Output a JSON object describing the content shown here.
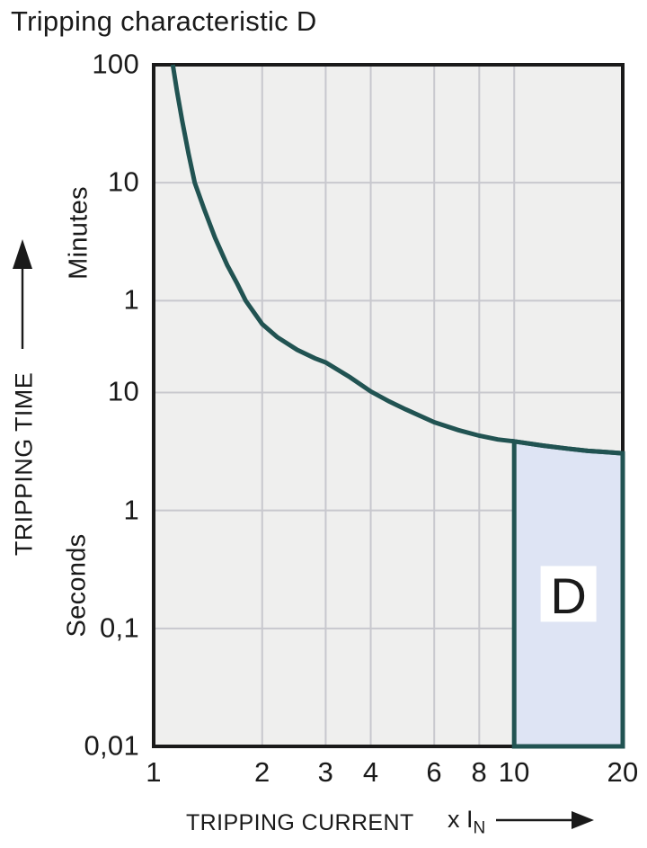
{
  "title": "Tripping characteristic D",
  "colors": {
    "text": "#1a1a1a",
    "curve": "#215352",
    "region_fill": "#dee4f4",
    "plot_bg": "#efefee",
    "grid": "#c8c8ce",
    "border": "#1a1a1a",
    "label_box_bg": "#ffffff",
    "page_bg": "#ffffff"
  },
  "chart_data": {
    "type": "line",
    "title": "Tripping characteristic D",
    "grid": true,
    "x_axis": {
      "label": "TRIPPING CURRENT",
      "multiplier_prefix": "x I",
      "multiplier_sub": "N",
      "scale": "log",
      "min": 1,
      "max": 20,
      "ticks": [
        1,
        2,
        3,
        4,
        6,
        8,
        10,
        20
      ]
    },
    "y_axis": {
      "label": "TRIPPING TIME",
      "unit_top": "Minutes",
      "unit_bottom": "Seconds",
      "scale": "log",
      "min_seconds": 0.01,
      "max_seconds": 6000,
      "ticks": [
        {
          "label": "100",
          "seconds": 6000,
          "unit": "minutes"
        },
        {
          "label": "10",
          "seconds": 600,
          "unit": "minutes"
        },
        {
          "label": "1",
          "seconds": 60,
          "unit": "minutes"
        },
        {
          "label": "10",
          "seconds": 10,
          "unit": "seconds"
        },
        {
          "label": "1",
          "seconds": 1,
          "unit": "seconds"
        },
        {
          "label": "0,1",
          "seconds": 0.1,
          "unit": "seconds"
        },
        {
          "label": "0,01",
          "seconds": 0.01,
          "unit": "seconds"
        }
      ]
    },
    "series": [
      {
        "name": "D tripping curve",
        "x_unit": "multiple of rated current In",
        "y_unit": "seconds",
        "points": [
          [
            1.13,
            6000
          ],
          [
            1.16,
            3600
          ],
          [
            1.2,
            2000
          ],
          [
            1.25,
            1050
          ],
          [
            1.3,
            600
          ],
          [
            1.38,
            360
          ],
          [
            1.48,
            205
          ],
          [
            1.6,
            120
          ],
          [
            1.7,
            85
          ],
          [
            1.8,
            60
          ],
          [
            2.0,
            38
          ],
          [
            2.2,
            29.5
          ],
          [
            2.5,
            23
          ],
          [
            2.8,
            19.5
          ],
          [
            3.0,
            18
          ],
          [
            3.5,
            13.5
          ],
          [
            4.0,
            10.2
          ],
          [
            4.5,
            8.4
          ],
          [
            5.0,
            7.2
          ],
          [
            6.0,
            5.6
          ],
          [
            7.0,
            4.8
          ],
          [
            8.0,
            4.3
          ],
          [
            9.0,
            4.0
          ],
          [
            10.0,
            3.85
          ],
          [
            12.0,
            3.55
          ],
          [
            14.0,
            3.35
          ],
          [
            16.0,
            3.2
          ],
          [
            18.0,
            3.12
          ],
          [
            20.0,
            3.05
          ]
        ]
      }
    ],
    "region": {
      "label": "D",
      "x_from": 10,
      "x_to": 20,
      "bottom_seconds": 0.01,
      "top_follows_curve": true
    }
  }
}
